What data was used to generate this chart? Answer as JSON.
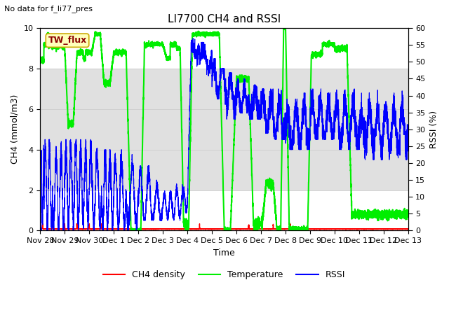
{
  "title": "LI7700 CH4 and RSSI",
  "top_left_text": "No data for f_li77_pres",
  "ylabel_left": "CH4 (mmol/m3)",
  "ylabel_right": "RSSI (%)",
  "xlabel": "Time",
  "ylim_left": [
    0,
    10
  ],
  "ylim_right": [
    0,
    60
  ],
  "xlim": [
    0,
    15
  ],
  "x_tick_labels": [
    "Nov 28",
    "Nov 29",
    "Nov 30",
    "Dec 1",
    "Dec 2",
    "Dec 3",
    "Dec 4",
    "Dec 5",
    "Dec 6",
    "Dec 7",
    "Dec 8",
    "Dec 9",
    "Dec 10",
    "Dec 11",
    "Dec 12",
    "Dec 13"
  ],
  "shaded_band": [
    2,
    8
  ],
  "shaded_color": "#e0e0e0",
  "bg_color": "white",
  "box_label": "TW_flux",
  "box_facecolor": "#ffffbb",
  "box_edgecolor": "#ccaa00",
  "ch4_color": "red",
  "temp_color": "#00ee00",
  "rssi_color": "blue",
  "rssi_lw": 0.8,
  "temp_lw": 1.5,
  "ch4_lw": 0.8,
  "title_fontsize": 11,
  "axis_fontsize": 9,
  "tick_fontsize": 8
}
